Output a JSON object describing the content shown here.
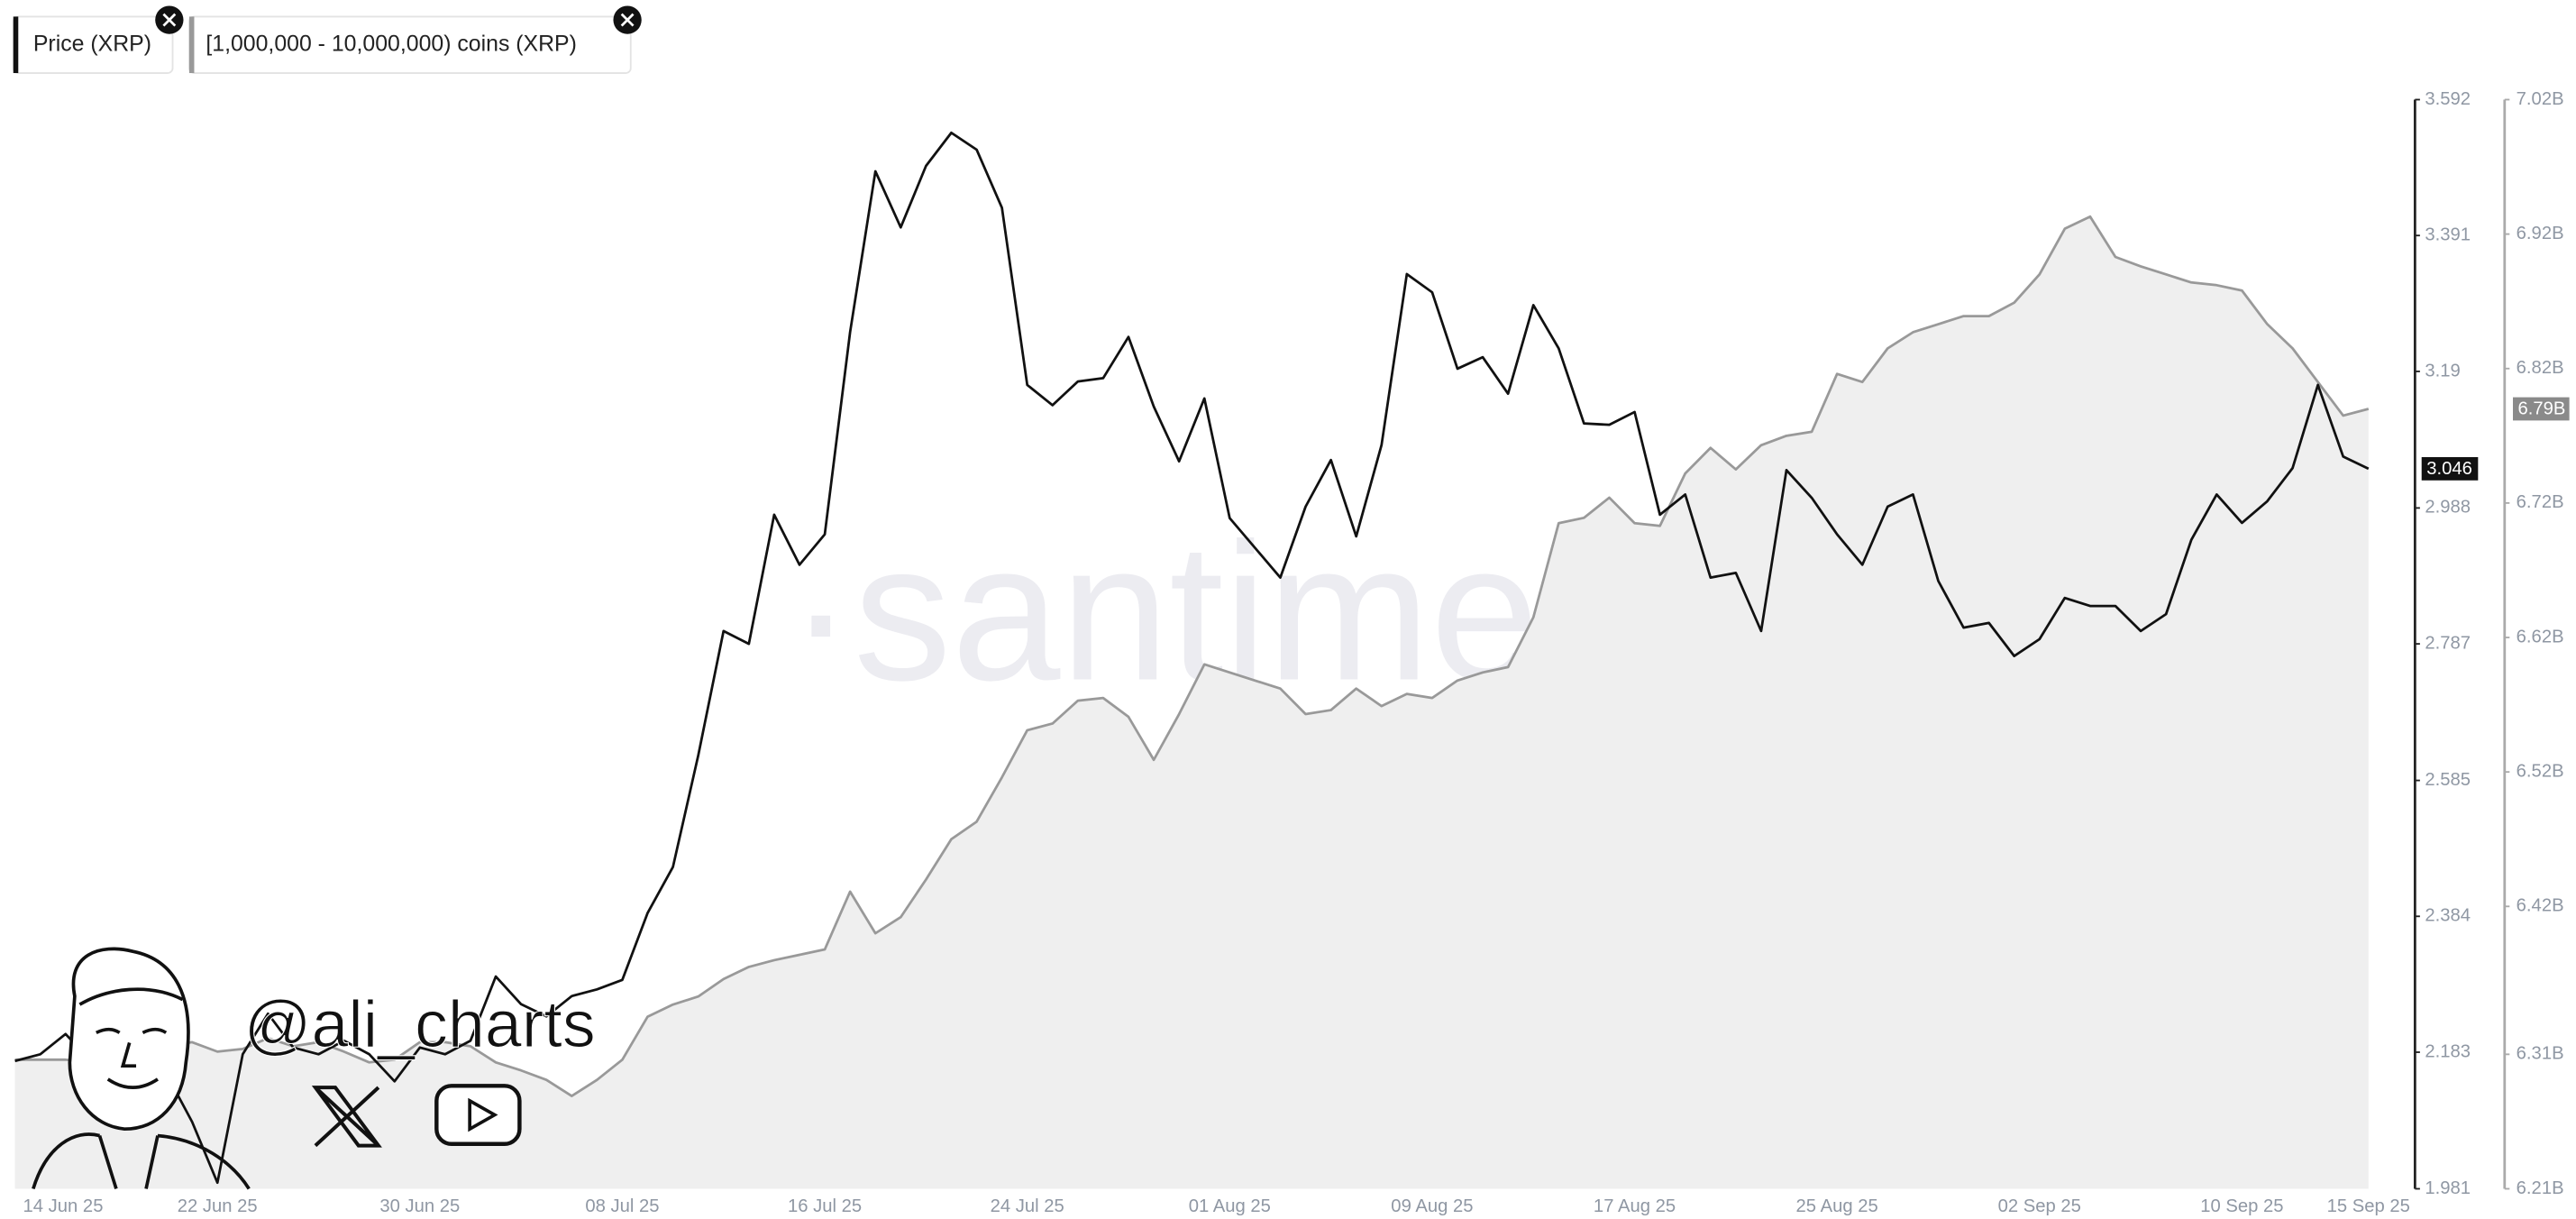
{
  "chart_data": {
    "type": "line",
    "watermark": "·santiment·",
    "overlay_handle": "@ali_charts",
    "categories": [
      "14 Jun 25",
      null,
      null,
      null,
      null,
      null,
      null,
      null,
      "22 Jun 25",
      null,
      null,
      null,
      null,
      null,
      null,
      null,
      "30 Jun 25",
      null,
      null,
      null,
      null,
      null,
      null,
      null,
      "08 Jul 25",
      null,
      null,
      null,
      null,
      null,
      null,
      null,
      "16 Jul 25",
      null,
      null,
      null,
      null,
      null,
      null,
      null,
      "24 Jul 25",
      null,
      null,
      null,
      null,
      null,
      null,
      null,
      "01 Aug 25",
      null,
      null,
      null,
      null,
      null,
      null,
      null,
      "09 Aug 25",
      null,
      null,
      null,
      null,
      null,
      null,
      null,
      "17 Aug 25",
      null,
      null,
      null,
      null,
      null,
      null,
      null,
      "25 Aug 25",
      null,
      null,
      null,
      null,
      null,
      null,
      null,
      "02 Sep 25",
      null,
      null,
      null,
      null,
      null,
      null,
      null,
      "10 Sep 25",
      null,
      null,
      null,
      null,
      "15 Sep 25"
    ],
    "series": [
      {
        "name": "Price (XRP)",
        "color": "#111111",
        "current": 3.046,
        "values": [
          2.17,
          2.18,
          2.21,
          2.17,
          2.14,
          2.17,
          2.15,
          2.08,
          1.99,
          2.18,
          2.24,
          2.19,
          2.18,
          2.2,
          2.18,
          2.14,
          2.19,
          2.18,
          2.2,
          2.295,
          2.254,
          2.236,
          2.266,
          2.276,
          2.29,
          2.389,
          2.457,
          2.622,
          2.806,
          2.787,
          2.978,
          2.904,
          2.949,
          3.248,
          3.486,
          3.403,
          3.494,
          3.543,
          3.518,
          3.432,
          3.17,
          3.14,
          3.175,
          3.18,
          3.241,
          3.138,
          3.057,
          3.15,
          2.973,
          2.929,
          2.885,
          2.99,
          3.059,
          2.946,
          3.081,
          3.334,
          3.307,
          3.194,
          3.211,
          3.157,
          3.288,
          3.224,
          3.113,
          3.111,
          3.13,
          2.978,
          3.008,
          2.885,
          2.892,
          2.806,
          3.044,
          3.003,
          2.949,
          2.904,
          2.99,
          3.008,
          2.88,
          2.811,
          2.818,
          2.769,
          2.794,
          2.855,
          2.843,
          2.843,
          2.806,
          2.831,
          2.941,
          3.008,
          2.966,
          2.998,
          3.047,
          3.17,
          3.064,
          3.046
        ]
      },
      {
        "name": "[1,000,000 - 10,000,000) coins (XRP)",
        "color": "#999999",
        "area_color": "#efefef",
        "axis": "y2",
        "current": {
          "value": 6.79,
          "label": "6.79B"
        },
        "values": [
          6.306,
          6.306,
          6.306,
          6.304,
          6.306,
          6.314,
          6.316,
          6.319,
          6.312,
          6.314,
          6.322,
          6.316,
          6.319,
          6.312,
          6.304,
          6.306,
          6.319,
          6.319,
          6.316,
          6.304,
          6.298,
          6.291,
          6.279,
          6.291,
          6.306,
          6.338,
          6.347,
          6.353,
          6.366,
          6.375,
          6.38,
          6.384,
          6.388,
          6.431,
          6.4,
          6.412,
          6.44,
          6.47,
          6.483,
          6.516,
          6.551,
          6.556,
          6.573,
          6.575,
          6.561,
          6.529,
          6.563,
          6.6,
          6.594,
          6.588,
          6.582,
          6.563,
          6.566,
          6.582,
          6.569,
          6.578,
          6.575,
          6.588,
          6.594,
          6.598,
          6.635,
          6.705,
          6.709,
          6.724,
          6.705,
          6.703,
          6.742,
          6.761,
          6.745,
          6.763,
          6.77,
          6.773,
          6.816,
          6.81,
          6.835,
          6.847,
          6.853,
          6.859,
          6.859,
          6.869,
          6.89,
          6.924,
          6.933,
          6.903,
          6.896,
          6.89,
          6.884,
          6.882,
          6.878,
          6.853,
          6.835,
          6.81,
          6.785,
          6.79
        ]
      }
    ],
    "ylim": [
      1.981,
      3.592
    ],
    "yticks": [
      1.981,
      2.183,
      2.384,
      2.585,
      2.787,
      2.988,
      3.19,
      3.391,
      3.592
    ],
    "y2lim": [
      6.21,
      7.02
    ],
    "y2ticks": [
      {
        "value": 6.21,
        "label": "6.21B"
      },
      {
        "value": 6.31,
        "label": "6.31B"
      },
      {
        "value": 6.42,
        "label": "6.42B"
      },
      {
        "value": 6.52,
        "label": "6.52B"
      },
      {
        "value": 6.62,
        "label": "6.62B"
      },
      {
        "value": 6.72,
        "label": "6.72B"
      },
      {
        "value": 6.82,
        "label": "6.82B"
      },
      {
        "value": 6.92,
        "label": "6.92B"
      },
      {
        "value": 7.02,
        "label": "7.02B"
      }
    ],
    "grid": false
  }
}
